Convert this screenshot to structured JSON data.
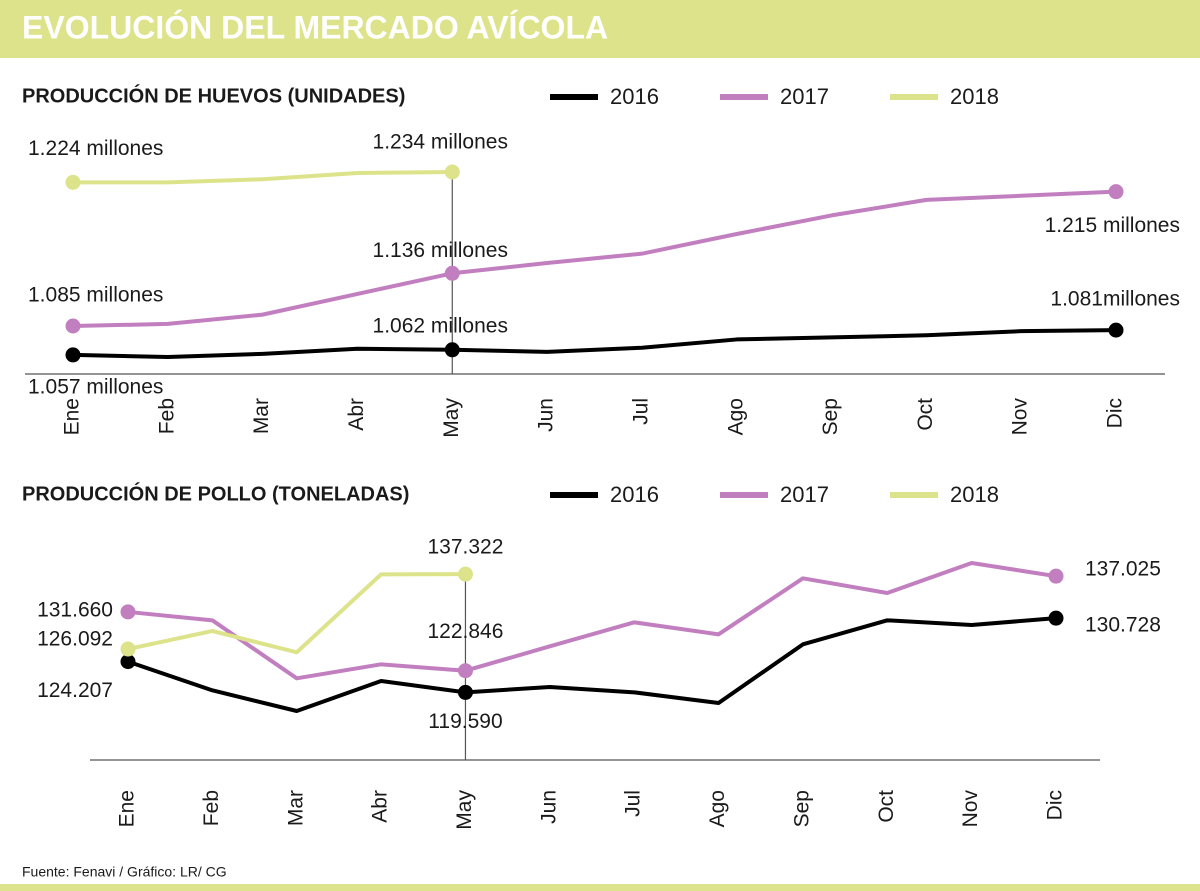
{
  "title": "EVOLUCIÓN DEL MERCADO AVÍCOLA",
  "source": "Fuente: Fenavi / Gráfico: LR/ CG",
  "chart_data": [
    {
      "type": "line",
      "title": "PRODUCCIÓN DE HUEVOS (UNIDADES)",
      "categories": [
        "Ene",
        "Feb",
        "Mar",
        "Abr",
        "May",
        "Jun",
        "Jul",
        "Ago",
        "Sep",
        "Oct",
        "Nov",
        "Dic"
      ],
      "series": [
        {
          "name": "2016",
          "color": "#000000",
          "values": [
            1057,
            1055,
            1058,
            1063,
            1062,
            1060,
            1064,
            1072,
            1074,
            1076,
            1080,
            1081
          ],
          "value_labels": [
            "1.057 millones",
            null,
            null,
            null,
            "1.062 millones",
            null,
            null,
            null,
            null,
            null,
            null,
            "1.081millones"
          ]
        },
        {
          "name": "2017",
          "color": "#c27fc0",
          "values": [
            1085,
            1087,
            1096,
            1116,
            1136,
            1146,
            1155,
            1174,
            1192,
            1207,
            1211,
            1215
          ],
          "value_labels": [
            "1.085 millones",
            null,
            null,
            null,
            "1.136 millones",
            null,
            null,
            null,
            null,
            null,
            null,
            "1.215 millones"
          ]
        },
        {
          "name": "2018",
          "color": "#dde38a",
          "values": [
            1224,
            1224,
            1227,
            1233,
            1234,
            null,
            null,
            null,
            null,
            null,
            null,
            null
          ],
          "value_labels": [
            "1.224 millones",
            null,
            null,
            null,
            "1.234 millones",
            null,
            null,
            null,
            null,
            null,
            null,
            null
          ]
        }
      ]
    },
    {
      "type": "line",
      "title": "PRODUCCIÓN DE POLLO (TONELADAS)",
      "categories": [
        "Ene",
        "Feb",
        "Mar",
        "Abr",
        "May",
        "Jun",
        "Jul",
        "Ago",
        "Sep",
        "Oct",
        "Nov",
        "Dic"
      ],
      "series": [
        {
          "name": "2016",
          "color": "#000000",
          "values": [
            124207,
            119900,
            116800,
            121300,
            119590,
            120400,
            119600,
            118000,
            126800,
            130400,
            129700,
            130728
          ],
          "value_labels": [
            "124.207",
            null,
            null,
            null,
            "119.590",
            null,
            null,
            null,
            null,
            null,
            null,
            "130.728"
          ]
        },
        {
          "name": "2017",
          "color": "#c27fc0",
          "values": [
            131660,
            130400,
            121700,
            123800,
            122846,
            126500,
            130100,
            128300,
            136700,
            134500,
            139000,
            137025
          ],
          "value_labels": [
            "131.660",
            null,
            null,
            null,
            "122.846",
            null,
            null,
            null,
            null,
            null,
            null,
            "137.025"
          ]
        },
        {
          "name": "2018",
          "color": "#dde38a",
          "values": [
            126092,
            128800,
            125600,
            137300,
            137322,
            null,
            null,
            null,
            null,
            null,
            null,
            null
          ],
          "value_labels": [
            "126.092",
            null,
            null,
            null,
            "137.322",
            null,
            null,
            null,
            null,
            null,
            null,
            null
          ]
        }
      ]
    }
  ]
}
